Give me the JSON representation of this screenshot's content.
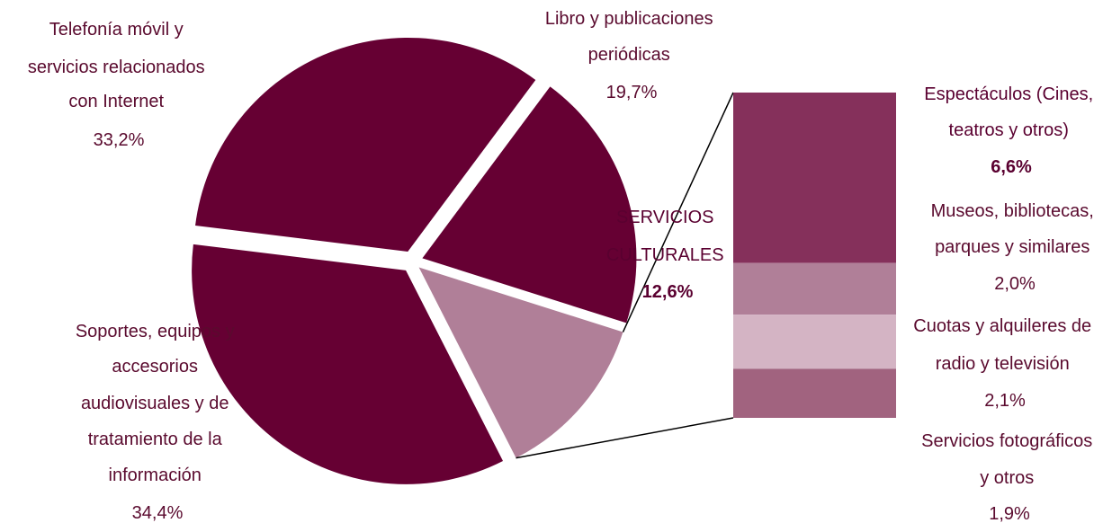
{
  "chart_data": {
    "type": "pie",
    "slices": [
      {
        "label_lines": [
          "Telefonía móvil y",
          "servicios relacionados",
          "con Internet"
        ],
        "value_text": "33,2%",
        "value": 33.2,
        "color": "#660033"
      },
      {
        "label_lines": [
          "Libro y publicaciones",
          "periódicas"
        ],
        "value_text": "19,7%",
        "value": 19.7,
        "color": "#660033"
      },
      {
        "label_lines": [
          "SERVICIOS",
          "CULTURALES"
        ],
        "value_text": "12,6%",
        "value": 12.6,
        "color": "#b07f98"
      },
      {
        "label_lines": [
          "Soportes, equipos y",
          "accesorios",
          "audiovisuales y de",
          "tratamiento de la",
          "información"
        ],
        "value_text": "34,4%",
        "value": 34.4,
        "color": "#660033"
      }
    ],
    "breakdown": {
      "of": "SERVICIOS CULTURALES",
      "segments": [
        {
          "label_lines": [
            "Espectáculos (Cines,",
            "teatros y otros)"
          ],
          "value_text": "6,6%",
          "value": 6.6,
          "color": "#85305b"
        },
        {
          "label_lines": [
            "Museos, bibliotecas,",
            "parques y similares"
          ],
          "value_text": "2,0%",
          "value": 2.0,
          "color": "#b07f98"
        },
        {
          "label_lines": [
            "Cuotas y alquileres de",
            "radio y televisión"
          ],
          "value_text": "2,1%",
          "value": 2.1,
          "color": "#d4b4c4"
        },
        {
          "label_lines": [
            "Servicios fotográficos",
            "y otros"
          ],
          "value_text": "1,9%",
          "value": 1.9,
          "color": "#a1637f"
        }
      ]
    }
  }
}
